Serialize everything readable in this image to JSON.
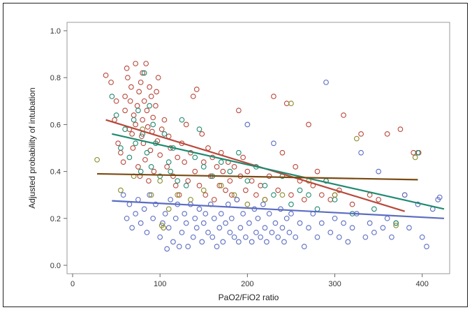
{
  "chart_data": {
    "type": "scatter",
    "title": "",
    "xlabel": "PaO2/FiO2 ratio",
    "ylabel": "Adjusted probability of intubation",
    "xlim": [
      0,
      425
    ],
    "ylim": [
      0,
      1.0
    ],
    "xticks": [
      0,
      100,
      200,
      300,
      400
    ],
    "yticks": [
      0.0,
      0.2,
      0.4,
      0.6,
      0.8,
      1.0
    ],
    "grid": false,
    "colors": {
      "blue": "#5b6cc2",
      "red": "#b8473a",
      "green": "#1f8a70",
      "brown": "#7a4a12",
      "olive": "#8a8a2a"
    },
    "series": [
      {
        "color_key": "red",
        "marker": "open-circle",
        "points": [
          [
            38,
            0.81
          ],
          [
            44,
            0.78
          ],
          [
            48,
            0.62
          ],
          [
            50,
            0.7
          ],
          [
            52,
            0.52
          ],
          [
            55,
            0.48
          ],
          [
            58,
            0.44
          ],
          [
            60,
            0.66
          ],
          [
            60,
            0.72
          ],
          [
            62,
            0.84
          ],
          [
            63,
            0.8
          ],
          [
            65,
            0.58
          ],
          [
            66,
            0.7
          ],
          [
            67,
            0.76
          ],
          [
            68,
            0.56
          ],
          [
            69,
            0.5
          ],
          [
            70,
            0.64
          ],
          [
            72,
            0.6
          ],
          [
            72,
            0.86
          ],
          [
            74,
            0.68
          ],
          [
            75,
            0.42
          ],
          [
            76,
            0.74
          ],
          [
            77,
            0.38
          ],
          [
            78,
            0.78
          ],
          [
            79,
            0.55
          ],
          [
            80,
            0.82
          ],
          [
            80,
            0.62
          ],
          [
            81,
            0.52
          ],
          [
            82,
            0.7
          ],
          [
            83,
            0.45
          ],
          [
            84,
            0.86
          ],
          [
            85,
            0.66
          ],
          [
            86,
            0.59
          ],
          [
            87,
            0.36
          ],
          [
            88,
            0.76
          ],
          [
            89,
            0.49
          ],
          [
            90,
            0.72
          ],
          [
            91,
            0.57
          ],
          [
            92,
            0.63
          ],
          [
            93,
            0.4
          ],
          [
            95,
            0.68
          ],
          [
            96,
            0.74
          ],
          [
            97,
            0.53
          ],
          [
            98,
            0.8
          ],
          [
            100,
            0.47
          ],
          [
            102,
            0.58
          ],
          [
            105,
            0.62
          ],
          [
            108,
            0.42
          ],
          [
            110,
            0.55
          ],
          [
            112,
            0.5
          ],
          [
            115,
            0.38
          ],
          [
            118,
            0.34
          ],
          [
            120,
            0.46
          ],
          [
            122,
            0.3
          ],
          [
            125,
            0.52
          ],
          [
            128,
            0.44
          ],
          [
            130,
            0.6
          ],
          [
            132,
            0.36
          ],
          [
            135,
            0.48
          ],
          [
            138,
            0.72
          ],
          [
            140,
            0.4
          ],
          [
            142,
            0.75
          ],
          [
            145,
            0.34
          ],
          [
            148,
            0.56
          ],
          [
            150,
            0.44
          ],
          [
            152,
            0.3
          ],
          [
            155,
            0.5
          ],
          [
            158,
            0.38
          ],
          [
            160,
            0.46
          ],
          [
            162,
            0.28
          ],
          [
            165,
            0.42
          ],
          [
            168,
            0.34
          ],
          [
            170,
            0.48
          ],
          [
            172,
            0.4
          ],
          [
            175,
            0.32
          ],
          [
            178,
            0.44
          ],
          [
            180,
            0.36
          ],
          [
            182,
            0.3
          ],
          [
            185,
            0.42
          ],
          [
            188,
            0.28
          ],
          [
            190,
            0.66
          ],
          [
            192,
            0.38
          ],
          [
            195,
            0.46
          ],
          [
            198,
            0.32
          ],
          [
            200,
            0.4
          ],
          [
            205,
            0.36
          ],
          [
            210,
            0.3
          ],
          [
            215,
            0.34
          ],
          [
            220,
            0.28
          ],
          [
            225,
            0.38
          ],
          [
            230,
            0.72
          ],
          [
            235,
            0.32
          ],
          [
            240,
            0.48
          ],
          [
            245,
            0.69
          ],
          [
            250,
            0.3
          ],
          [
            255,
            0.42
          ],
          [
            260,
            0.36
          ],
          [
            265,
            0.28
          ],
          [
            270,
            0.6
          ],
          [
            275,
            0.34
          ],
          [
            280,
            0.4
          ],
          [
            285,
            0.3
          ],
          [
            290,
            0.36
          ],
          [
            295,
            0.28
          ],
          [
            300,
            0.3
          ],
          [
            305,
            0.32
          ],
          [
            310,
            0.64
          ],
          [
            320,
            0.26
          ],
          [
            330,
            0.56
          ],
          [
            340,
            0.3
          ],
          [
            350,
            0.28
          ],
          [
            360,
            0.56
          ],
          [
            375,
            0.58
          ],
          [
            380,
            0.3
          ],
          [
            390,
            0.48
          ],
          [
            396,
            0.48
          ]
        ]
      },
      {
        "color_key": "blue",
        "marker": "open-circle",
        "points": [
          [
            58,
            0.3
          ],
          [
            62,
            0.2
          ],
          [
            65,
            0.26
          ],
          [
            68,
            0.16
          ],
          [
            72,
            0.22
          ],
          [
            75,
            0.28
          ],
          [
            78,
            0.18
          ],
          [
            82,
            0.24
          ],
          [
            85,
            0.14
          ],
          [
            88,
            0.3
          ],
          [
            92,
            0.2
          ],
          [
            95,
            0.26
          ],
          [
            100,
            0.12
          ],
          [
            103,
            0.18
          ],
          [
            106,
            0.22
          ],
          [
            108,
            0.07
          ],
          [
            110,
            0.16
          ],
          [
            112,
            0.28
          ],
          [
            115,
            0.1
          ],
          [
            118,
            0.2
          ],
          [
            120,
            0.26
          ],
          [
            122,
            0.08
          ],
          [
            125,
            0.14
          ],
          [
            128,
            0.22
          ],
          [
            130,
            0.18
          ],
          [
            132,
            0.08
          ],
          [
            135,
            0.26
          ],
          [
            138,
            0.12
          ],
          [
            140,
            0.2
          ],
          [
            142,
            0.16
          ],
          [
            145,
            0.24
          ],
          [
            148,
            0.1
          ],
          [
            150,
            0.18
          ],
          [
            152,
            0.22
          ],
          [
            155,
            0.14
          ],
          [
            158,
            0.26
          ],
          [
            160,
            0.12
          ],
          [
            162,
            0.2
          ],
          [
            165,
            0.08
          ],
          [
            168,
            0.16
          ],
          [
            170,
            0.22
          ],
          [
            172,
            0.1
          ],
          [
            175,
            0.18
          ],
          [
            178,
            0.26
          ],
          [
            180,
            0.14
          ],
          [
            182,
            0.2
          ],
          [
            185,
            0.12
          ],
          [
            188,
            0.28
          ],
          [
            190,
            0.1
          ],
          [
            192,
            0.16
          ],
          [
            195,
            0.22
          ],
          [
            198,
            0.12
          ],
          [
            200,
            0.6
          ],
          [
            202,
            0.18
          ],
          [
            205,
            0.1
          ],
          [
            208,
            0.24
          ],
          [
            210,
            0.14
          ],
          [
            212,
            0.2
          ],
          [
            215,
            0.12
          ],
          [
            218,
            0.26
          ],
          [
            220,
            0.16
          ],
          [
            222,
            0.1
          ],
          [
            225,
            0.22
          ],
          [
            228,
            0.14
          ],
          [
            230,
            0.52
          ],
          [
            232,
            0.18
          ],
          [
            235,
            0.12
          ],
          [
            238,
            0.24
          ],
          [
            240,
            0.16
          ],
          [
            242,
            0.1
          ],
          [
            245,
            0.2
          ],
          [
            248,
            0.14
          ],
          [
            250,
            0.22
          ],
          [
            255,
            0.12
          ],
          [
            260,
            0.18
          ],
          [
            265,
            0.08
          ],
          [
            270,
            0.16
          ],
          [
            275,
            0.22
          ],
          [
            280,
            0.12
          ],
          [
            285,
            0.18
          ],
          [
            290,
            0.78
          ],
          [
            295,
            0.14
          ],
          [
            300,
            0.2
          ],
          [
            305,
            0.12
          ],
          [
            310,
            0.18
          ],
          [
            315,
            0.1
          ],
          [
            320,
            0.16
          ],
          [
            325,
            0.22
          ],
          [
            330,
            0.48
          ],
          [
            335,
            0.12
          ],
          [
            340,
            0.18
          ],
          [
            345,
            0.14
          ],
          [
            350,
            0.4
          ],
          [
            355,
            0.16
          ],
          [
            360,
            0.2
          ],
          [
            365,
            0.12
          ],
          [
            370,
            0.18
          ],
          [
            380,
            0.3
          ],
          [
            385,
            0.16
          ],
          [
            395,
            0.26
          ],
          [
            400,
            0.12
          ],
          [
            405,
            0.08
          ],
          [
            412,
            0.24
          ],
          [
            418,
            0.28
          ],
          [
            420,
            0.29
          ]
        ]
      },
      {
        "color_key": "green",
        "marker": "open-circle",
        "points": [
          [
            45,
            0.72
          ],
          [
            50,
            0.64
          ],
          [
            55,
            0.5
          ],
          [
            60,
            0.58
          ],
          [
            65,
            0.46
          ],
          [
            70,
            0.62
          ],
          [
            72,
            0.52
          ],
          [
            75,
            0.66
          ],
          [
            78,
            0.4
          ],
          [
            80,
            0.56
          ],
          [
            82,
            0.82
          ],
          [
            85,
            0.48
          ],
          [
            88,
            0.68
          ],
          [
            90,
            0.42
          ],
          [
            92,
            0.6
          ],
          [
            95,
            0.52
          ],
          [
            100,
            0.38
          ],
          [
            105,
            0.56
          ],
          [
            110,
            0.44
          ],
          [
            112,
            0.4
          ],
          [
            115,
            0.5
          ],
          [
            120,
            0.36
          ],
          [
            125,
            0.62
          ],
          [
            130,
            0.34
          ],
          [
            140,
            0.46
          ],
          [
            145,
            0.58
          ],
          [
            150,
            0.42
          ],
          [
            160,
            0.38
          ],
          [
            170,
            0.44
          ],
          [
            180,
            0.4
          ],
          [
            190,
            0.48
          ],
          [
            200,
            0.36
          ],
          [
            210,
            0.42
          ],
          [
            220,
            0.34
          ],
          [
            230,
            0.3
          ],
          [
            240,
            0.38
          ],
          [
            250,
            0.26
          ],
          [
            260,
            0.32
          ],
          [
            270,
            0.3
          ],
          [
            280,
            0.24
          ],
          [
            290,
            0.36
          ],
          [
            300,
            0.28
          ],
          [
            320,
            0.22
          ],
          [
            345,
            0.24
          ],
          [
            370,
            0.18
          ],
          [
            395,
            0.48
          ]
        ]
      },
      {
        "color_key": "olive",
        "marker": "open-circle",
        "points": [
          [
            28,
            0.45
          ],
          [
            55,
            0.32
          ],
          [
            70,
            0.38
          ],
          [
            80,
            0.58
          ],
          [
            90,
            0.3
          ],
          [
            100,
            0.36
          ],
          [
            102,
            0.17
          ],
          [
            104,
            0.16
          ],
          [
            110,
            0.24
          ],
          [
            120,
            0.3
          ],
          [
            135,
            0.28
          ],
          [
            150,
            0.32
          ],
          [
            170,
            0.34
          ],
          [
            185,
            0.3
          ],
          [
            200,
            0.26
          ],
          [
            220,
            0.28
          ],
          [
            240,
            0.3
          ],
          [
            250,
            0.69
          ],
          [
            270,
            0.36
          ],
          [
            300,
            0.3
          ],
          [
            325,
            0.54
          ],
          [
            370,
            0.17
          ],
          [
            392,
            0.46
          ]
        ]
      }
    ],
    "trend_lines": [
      {
        "color_key": "red",
        "x": [
          38,
          380
        ],
        "y": [
          0.62,
          0.23
        ]
      },
      {
        "color_key": "green",
        "x": [
          45,
          425
        ],
        "y": [
          0.56,
          0.24
        ]
      },
      {
        "color_key": "brown",
        "x": [
          28,
          395
        ],
        "y": [
          0.39,
          0.365
        ]
      },
      {
        "color_key": "blue",
        "x": [
          45,
          425
        ],
        "y": [
          0.275,
          0.2
        ]
      }
    ]
  }
}
